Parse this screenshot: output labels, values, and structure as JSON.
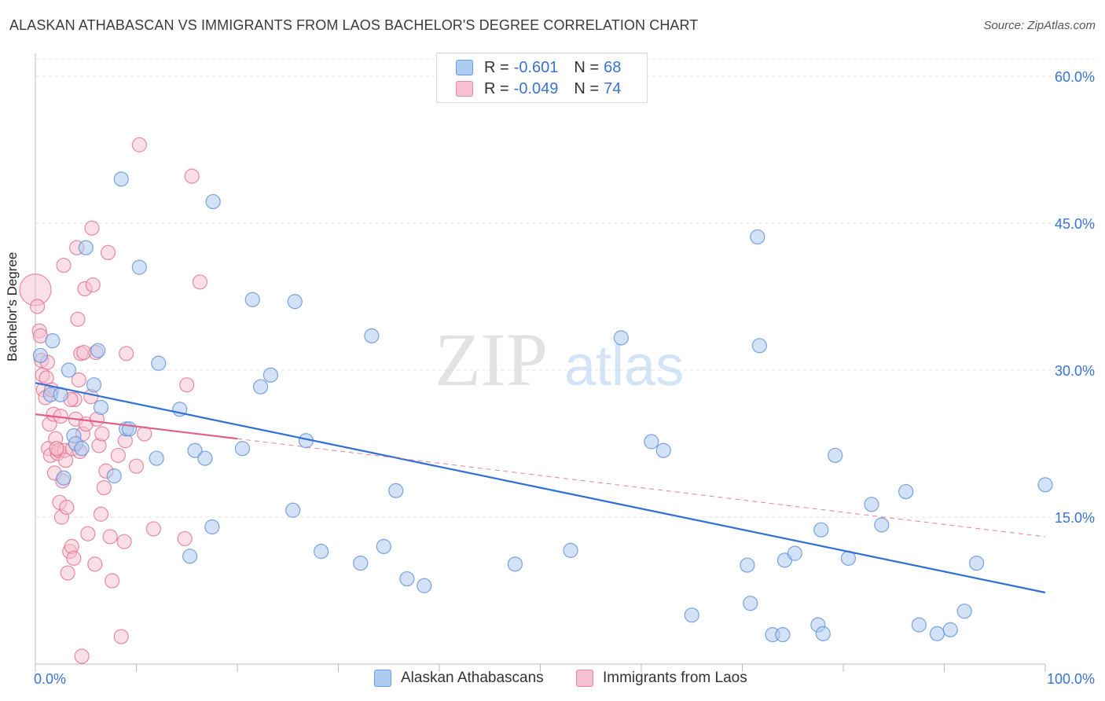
{
  "title": "ALASKAN ATHABASCAN VS IMMIGRANTS FROM LAOS BACHELOR'S DEGREE CORRELATION CHART",
  "source": "Source: ZipAtlas.com",
  "watermark": {
    "zip": "ZIP",
    "atlas": "atlas"
  },
  "legend_top": [
    {
      "r_label": "R =",
      "r_value": "-0.601",
      "n_label": "N =",
      "n_value": "68",
      "fill": "#aecbf0",
      "stroke": "#6a9be0"
    },
    {
      "r_label": "R =",
      "r_value": "-0.049",
      "n_label": "N =",
      "n_value": "74",
      "fill": "#f7bfd0",
      "stroke": "#e889a8"
    }
  ],
  "legend_bottom": [
    {
      "label": "Alaskan Athabascans",
      "fill": "#aecbf0",
      "stroke": "#6a9be0"
    },
    {
      "label": "Immigrants from Laos",
      "fill": "#f7bfd0",
      "stroke": "#e889a8"
    }
  ],
  "chart_data": {
    "type": "scatter",
    "title": "ALASKAN ATHABASCAN VS IMMIGRANTS FROM LAOS BACHELOR'S DEGREE CORRELATION CHART",
    "xlabel": "",
    "ylabel": "Bachelor's Degree",
    "xlim": [
      0,
      100
    ],
    "ylim": [
      0,
      60
    ],
    "x_tick_labels": [
      "0.0%",
      "100.0%"
    ],
    "y_ticks": [
      15,
      30,
      45,
      60
    ],
    "y_tick_labels": [
      "15.0%",
      "30.0%",
      "45.0%",
      "60.0%"
    ],
    "grid": true,
    "legend_position": "top-center",
    "series": [
      {
        "name": "Alaskan Athabascans",
        "color": "#5b8fd9",
        "fill": "#aecbf0",
        "points": [
          [
            0.5,
            31.5
          ],
          [
            1.5,
            27.5
          ],
          [
            1.7,
            33.0
          ],
          [
            2.5,
            27.5
          ],
          [
            2.8,
            19.0
          ],
          [
            3.3,
            30.0
          ],
          [
            3.8,
            23.3
          ],
          [
            4.0,
            22.5
          ],
          [
            4.6,
            22.0
          ],
          [
            5.0,
            42.5
          ],
          [
            5.8,
            28.5
          ],
          [
            6.2,
            32.0
          ],
          [
            6.5,
            26.2
          ],
          [
            7.8,
            19.2
          ],
          [
            8.5,
            49.5
          ],
          [
            9.0,
            24.0
          ],
          [
            9.3,
            24.0
          ],
          [
            10.3,
            40.5
          ],
          [
            12.0,
            21.0
          ],
          [
            12.2,
            30.7
          ],
          [
            14.3,
            26.0
          ],
          [
            15.3,
            11.0
          ],
          [
            15.8,
            21.8
          ],
          [
            16.8,
            21.0
          ],
          [
            17.5,
            14.0
          ],
          [
            17.6,
            47.2
          ],
          [
            20.5,
            22.0
          ],
          [
            21.5,
            37.2
          ],
          [
            22.3,
            28.3
          ],
          [
            23.3,
            29.5
          ],
          [
            25.5,
            15.7
          ],
          [
            25.7,
            37.0
          ],
          [
            26.8,
            22.8
          ],
          [
            28.3,
            11.5
          ],
          [
            32.2,
            10.3
          ],
          [
            33.3,
            33.5
          ],
          [
            34.5,
            12.0
          ],
          [
            35.7,
            17.7
          ],
          [
            36.8,
            8.7
          ],
          [
            38.5,
            8.0
          ],
          [
            47.5,
            10.2
          ],
          [
            53.0,
            11.6
          ],
          [
            58.0,
            33.3
          ],
          [
            61.0,
            22.7
          ],
          [
            62.2,
            21.8
          ],
          [
            65.0,
            5.0
          ],
          [
            70.5,
            10.1
          ],
          [
            70.8,
            6.2
          ],
          [
            71.5,
            43.6
          ],
          [
            71.7,
            32.5
          ],
          [
            73.0,
            3.0
          ],
          [
            74.0,
            3.0
          ],
          [
            74.2,
            10.6
          ],
          [
            75.2,
            11.3
          ],
          [
            77.5,
            4.0
          ],
          [
            77.8,
            13.7
          ],
          [
            78.0,
            3.1
          ],
          [
            79.2,
            21.3
          ],
          [
            80.5,
            10.8
          ],
          [
            82.8,
            16.3
          ],
          [
            83.8,
            14.2
          ],
          [
            86.2,
            17.6
          ],
          [
            87.5,
            4.0
          ],
          [
            89.3,
            3.1
          ],
          [
            90.6,
            3.5
          ],
          [
            92.0,
            5.4
          ],
          [
            93.2,
            10.3
          ],
          [
            100.0,
            18.3
          ]
        ],
        "trend": {
          "x": [
            0,
            100
          ],
          "y": [
            28.7,
            7.3
          ]
        }
      },
      {
        "name": "Immigrants from Laos",
        "color": "#e0708f",
        "fill": "#f7bfd0",
        "points": [
          [
            0.0,
            38.2
          ],
          [
            0.2,
            36.5
          ],
          [
            0.4,
            34.0
          ],
          [
            0.5,
            33.5
          ],
          [
            0.6,
            31.0
          ],
          [
            0.7,
            29.5
          ],
          [
            0.8,
            28.0
          ],
          [
            1.0,
            27.2
          ],
          [
            1.1,
            29.2
          ],
          [
            1.2,
            30.8
          ],
          [
            1.3,
            22.0
          ],
          [
            1.4,
            24.5
          ],
          [
            1.5,
            21.3
          ],
          [
            1.6,
            28.0
          ],
          [
            1.8,
            25.5
          ],
          [
            1.9,
            19.5
          ],
          [
            2.0,
            23.0
          ],
          [
            2.2,
            21.5
          ],
          [
            2.3,
            21.8
          ],
          [
            2.4,
            16.5
          ],
          [
            2.5,
            25.3
          ],
          [
            2.6,
            15.0
          ],
          [
            2.7,
            18.7
          ],
          [
            2.8,
            40.7
          ],
          [
            2.9,
            21.8
          ],
          [
            3.0,
            20.8
          ],
          [
            3.1,
            16.0
          ],
          [
            3.2,
            9.3
          ],
          [
            3.4,
            11.5
          ],
          [
            3.6,
            12.0
          ],
          [
            3.7,
            22.0
          ],
          [
            3.8,
            10.8
          ],
          [
            3.9,
            27.0
          ],
          [
            4.0,
            25.0
          ],
          [
            4.1,
            42.5
          ],
          [
            4.2,
            35.2
          ],
          [
            4.3,
            29.0
          ],
          [
            4.4,
            21.7
          ],
          [
            4.5,
            31.7
          ],
          [
            4.7,
            23.5
          ],
          [
            4.8,
            31.8
          ],
          [
            4.9,
            38.3
          ],
          [
            5.0,
            24.5
          ],
          [
            5.2,
            13.3
          ],
          [
            5.5,
            27.3
          ],
          [
            5.6,
            44.5
          ],
          [
            5.7,
            38.7
          ],
          [
            5.9,
            10.2
          ],
          [
            6.0,
            31.8
          ],
          [
            6.1,
            25.0
          ],
          [
            6.3,
            22.3
          ],
          [
            6.5,
            15.3
          ],
          [
            6.6,
            23.5
          ],
          [
            6.8,
            18.0
          ],
          [
            7.0,
            19.7
          ],
          [
            7.2,
            42.0
          ],
          [
            7.4,
            13.0
          ],
          [
            7.6,
            8.5
          ],
          [
            8.2,
            21.3
          ],
          [
            8.5,
            2.8
          ],
          [
            8.8,
            12.5
          ],
          [
            8.9,
            22.8
          ],
          [
            9.0,
            31.7
          ],
          [
            10.0,
            20.2
          ],
          [
            10.3,
            53.0
          ],
          [
            10.8,
            23.5
          ],
          [
            11.7,
            13.8
          ],
          [
            14.8,
            12.8
          ],
          [
            15.0,
            28.5
          ],
          [
            15.5,
            49.8
          ],
          [
            16.3,
            39.0
          ],
          [
            4.6,
            0.8
          ],
          [
            3.5,
            27.0
          ],
          [
            2.1,
            22.0
          ]
        ],
        "trend": {
          "x": [
            0,
            20
          ],
          "y": [
            25.5,
            23.0
          ]
        },
        "trend_dashed": {
          "x": [
            20,
            100
          ],
          "y": [
            23.0,
            13.0
          ]
        }
      }
    ]
  }
}
